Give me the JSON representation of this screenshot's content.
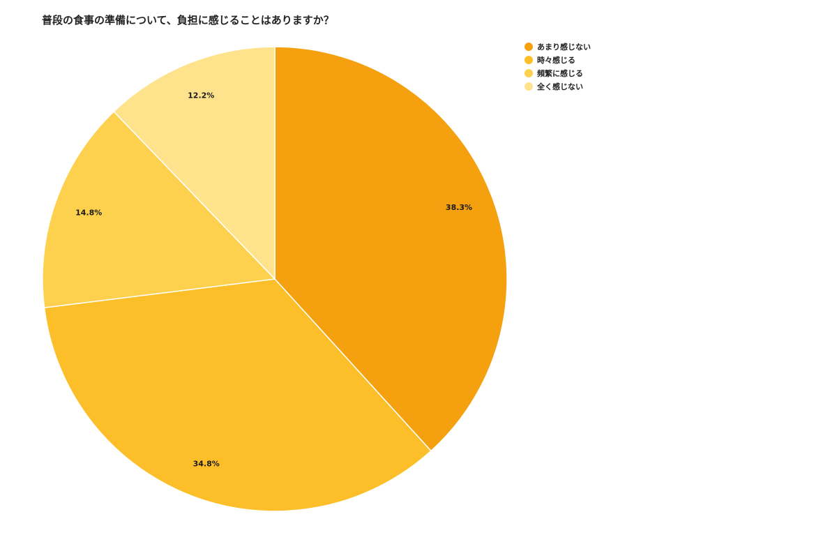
{
  "chart_data": {
    "type": "pie",
    "title": "普段の食事の準備について、負担に感じることはありますか？",
    "legend_position": "top-right",
    "slices": [
      {
        "label": "あまり感じない",
        "value": 38.3,
        "value_label": "38.3%",
        "color": "#f5a00f"
      },
      {
        "label": "時々感じる",
        "value": 34.8,
        "value_label": "34.8%",
        "color": "#fcbf29"
      },
      {
        "label": "頻繁に感じる",
        "value": 14.8,
        "value_label": "14.8%",
        "color": "#fdd14e"
      },
      {
        "label": "全く感じない",
        "value": 12.2,
        "value_label": "12.2%",
        "color": "#fee38c"
      }
    ]
  }
}
